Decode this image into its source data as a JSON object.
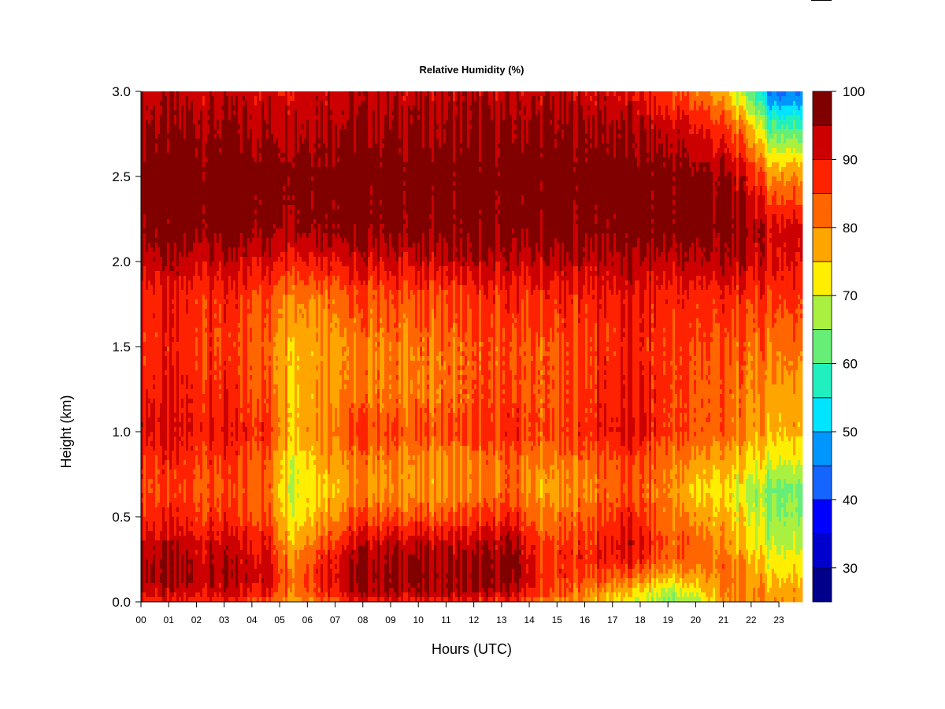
{
  "chart_data": {
    "type": "heatmap",
    "title": "Relative Humidity (%)",
    "xlabel": "Hours (UTC)",
    "ylabel": "Height (km)",
    "xlim": [
      0,
      23.85
    ],
    "ylim": [
      0,
      3.0
    ],
    "x_ticks": [
      "00",
      "01",
      "02",
      "03",
      "04",
      "05",
      "06",
      "07",
      "08",
      "09",
      "10",
      "11",
      "12",
      "13",
      "14",
      "15",
      "16",
      "17",
      "18",
      "19",
      "20",
      "21",
      "22",
      "23"
    ],
    "y_ticks": [
      "0.0",
      "0.5",
      "1.0",
      "1.5",
      "2.0",
      "2.5",
      "3.0"
    ],
    "colorbar": {
      "range": [
        25,
        100
      ],
      "levels": [
        25,
        30,
        35,
        40,
        45,
        50,
        55,
        60,
        65,
        70,
        75,
        80,
        85,
        90,
        95,
        100
      ],
      "tick_labels": [
        "30",
        "40",
        "50",
        "60",
        "70",
        "80",
        "90",
        "100"
      ],
      "tick_values": [
        30,
        40,
        50,
        60,
        70,
        80,
        90,
        100
      ],
      "colors": [
        "#00008b",
        "#0000cd",
        "#0000ff",
        "#1464ff",
        "#0096ff",
        "#00e5ff",
        "#20f0c0",
        "#66ee77",
        "#aaf040",
        "#ffee00",
        "#ffa500",
        "#ff6600",
        "#ff2200",
        "#cc0000",
        "#800000"
      ]
    },
    "profile_heights_km": [
      0.0,
      0.05,
      0.15,
      0.25,
      0.35,
      0.5,
      0.65,
      0.8,
      1.0,
      1.2,
      1.5,
      1.8,
      2.0,
      2.2,
      2.5,
      2.8,
      3.0
    ],
    "profile_hours": [
      0.0,
      2.0,
      4.5,
      5.5,
      6.5,
      8.0,
      10.0,
      12.0,
      13.5,
      14.5,
      16.5,
      17.7,
      19.0,
      20.0,
      21.0,
      22.0,
      22.7,
      23.85
    ],
    "rh_profiles": [
      [
        87,
        92,
        96,
        95,
        93,
        88,
        86,
        87,
        92,
        90,
        88,
        89,
        94,
        98,
        99,
        96,
        93
      ],
      [
        87,
        92,
        95,
        94,
        92,
        87,
        85,
        86,
        90,
        89,
        87,
        88,
        93,
        98,
        99,
        96,
        93
      ],
      [
        84,
        90,
        93,
        92,
        90,
        85,
        83,
        84,
        88,
        85,
        83,
        86,
        92,
        98,
        99,
        95,
        92
      ],
      [
        78,
        82,
        83,
        80,
        77,
        73,
        71,
        72,
        77,
        76,
        77,
        82,
        90,
        97,
        99,
        95,
        92
      ],
      [
        83,
        88,
        91,
        89,
        85,
        79,
        76,
        78,
        82,
        80,
        79,
        83,
        91,
        98,
        99,
        96,
        93
      ],
      [
        88,
        94,
        96,
        95,
        93,
        85,
        80,
        81,
        86,
        82,
        81,
        85,
        92,
        98,
        99,
        96,
        93
      ],
      [
        89,
        95,
        97,
        96,
        93,
        84,
        79,
        79,
        84,
        81,
        81,
        85,
        92,
        98,
        99,
        96,
        93
      ],
      [
        87,
        93,
        95,
        94,
        92,
        85,
        80,
        80,
        85,
        83,
        83,
        86,
        93,
        98,
        99,
        96,
        93
      ],
      [
        86,
        93,
        97,
        97,
        95,
        88,
        83,
        83,
        88,
        86,
        85,
        88,
        93,
        98,
        99,
        96,
        93
      ],
      [
        80,
        85,
        87,
        86,
        84,
        80,
        77,
        79,
        84,
        83,
        83,
        87,
        93,
        98,
        99,
        96,
        93
      ],
      [
        76,
        80,
        85,
        89,
        88,
        85,
        82,
        83,
        89,
        88,
        87,
        89,
        94,
        98,
        99,
        96,
        92
      ],
      [
        70,
        74,
        82,
        90,
        92,
        88,
        84,
        85,
        91,
        90,
        88,
        90,
        94,
        98,
        98,
        95,
        90
      ],
      [
        63,
        68,
        76,
        83,
        84,
        82,
        80,
        81,
        86,
        86,
        86,
        88,
        93,
        98,
        98,
        92,
        86
      ],
      [
        68,
        72,
        78,
        83,
        83,
        79,
        74,
        78,
        84,
        84,
        85,
        88,
        94,
        98,
        97,
        90,
        82
      ],
      [
        77,
        80,
        82,
        81,
        79,
        76,
        73,
        76,
        83,
        83,
        84,
        88,
        94,
        97,
        96,
        86,
        76
      ],
      [
        79,
        80,
        79,
        76,
        73,
        71,
        69,
        73,
        79,
        80,
        82,
        87,
        93,
        96,
        90,
        76,
        62
      ],
      [
        80,
        78,
        75,
        72,
        69,
        66,
        64,
        70,
        77,
        78,
        82,
        87,
        91,
        92,
        80,
        60,
        44
      ],
      [
        80,
        78,
        75,
        72,
        69,
        66,
        64,
        70,
        77,
        78,
        82,
        87,
        91,
        92,
        80,
        60,
        44
      ]
    ]
  }
}
